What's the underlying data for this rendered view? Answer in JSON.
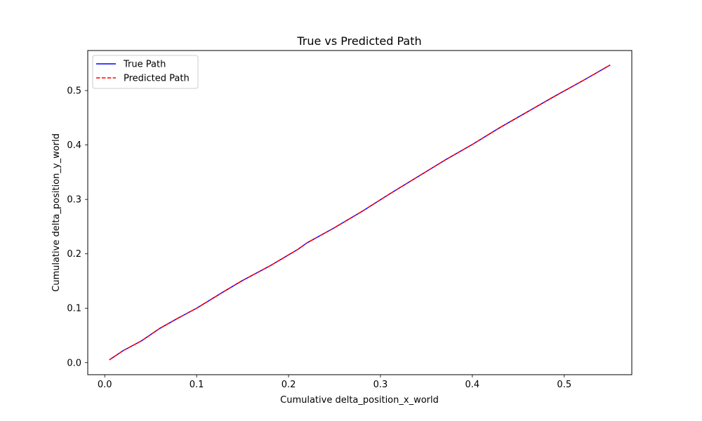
{
  "chart_data": {
    "type": "line",
    "title": "True vs Predicted Path",
    "xlabel": "Cumulative delta_position_x_world",
    "ylabel": "Cumulative delta_position_y_world",
    "xlim": [
      -0.0185,
      0.5735
    ],
    "ylim": [
      -0.0222,
      0.5736
    ],
    "xticks": [
      0.0,
      0.1,
      0.2,
      0.3,
      0.4,
      0.5
    ],
    "xtick_labels": [
      "0.0",
      "0.1",
      "0.2",
      "0.3",
      "0.4",
      "0.5"
    ],
    "yticks": [
      0.0,
      0.1,
      0.2,
      0.3,
      0.4,
      0.5
    ],
    "ytick_labels": [
      "0.0",
      "0.1",
      "0.2",
      "0.3",
      "0.4",
      "0.5"
    ],
    "grid": false,
    "legend_position": "top-left",
    "series": [
      {
        "name": "True Path",
        "color": "#0000ff",
        "style": "solid",
        "x": [
          0.005,
          0.02,
          0.04,
          0.06,
          0.08,
          0.1,
          0.13,
          0.15,
          0.18,
          0.21,
          0.22,
          0.25,
          0.28,
          0.31,
          0.34,
          0.37,
          0.4,
          0.43,
          0.46,
          0.49,
          0.52,
          0.55
        ],
        "y": [
          0.005,
          0.022,
          0.04,
          0.063,
          0.082,
          0.1,
          0.131,
          0.151,
          0.178,
          0.208,
          0.22,
          0.248,
          0.278,
          0.31,
          0.341,
          0.372,
          0.401,
          0.432,
          0.461,
          0.49,
          0.518,
          0.547
        ]
      },
      {
        "name": "Predicted Path",
        "color": "#ff0000",
        "style": "dashed",
        "x": [
          0.005,
          0.02,
          0.04,
          0.06,
          0.08,
          0.1,
          0.13,
          0.15,
          0.18,
          0.21,
          0.22,
          0.25,
          0.28,
          0.31,
          0.34,
          0.37,
          0.4,
          0.43,
          0.46,
          0.49,
          0.52,
          0.55
        ],
        "y": [
          0.005,
          0.022,
          0.04,
          0.063,
          0.082,
          0.1,
          0.131,
          0.151,
          0.178,
          0.208,
          0.22,
          0.248,
          0.278,
          0.31,
          0.341,
          0.372,
          0.401,
          0.432,
          0.461,
          0.49,
          0.518,
          0.547
        ]
      }
    ]
  }
}
